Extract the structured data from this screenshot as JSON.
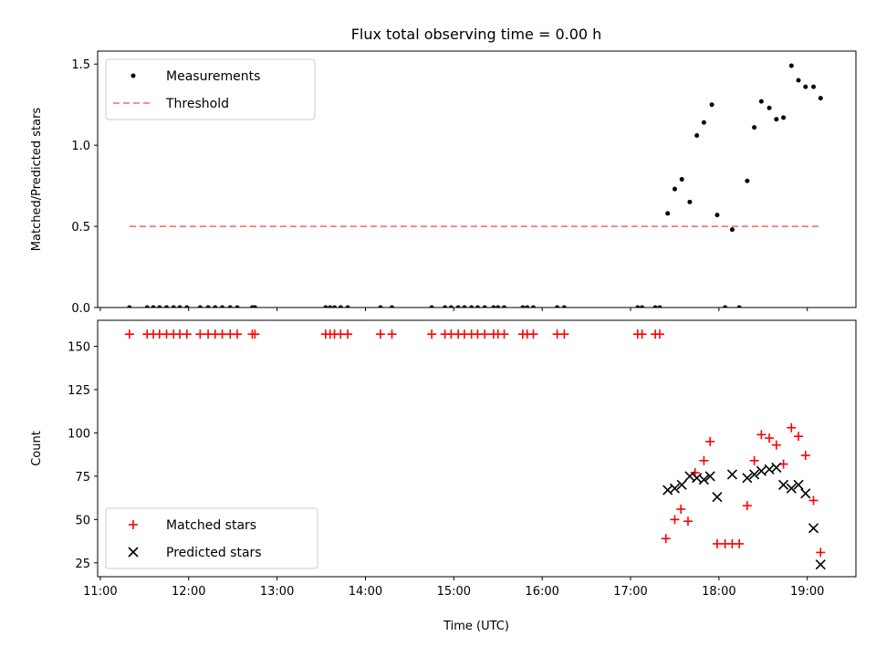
{
  "figure": {
    "title": "Flux total observing time = 0.00 h",
    "xlabel": "Time (UTC)",
    "xticks": [
      "11:00",
      "12:00",
      "13:00",
      "14:00",
      "15:00",
      "16:00",
      "17:00",
      "18:00",
      "19:00"
    ]
  },
  "chart_data": [
    {
      "type": "scatter",
      "title": "Flux total observing time = 0.00 h",
      "xlabel": "",
      "ylabel": "Matched/Predicted stars",
      "x_unit": "hours UTC",
      "xlim": [
        10.97,
        19.55
      ],
      "ylim": [
        0,
        1.58
      ],
      "yticks": [
        0.0,
        0.5,
        1.0,
        1.5
      ],
      "ytick_labels": [
        "0.0",
        "0.5",
        "1.0",
        "1.5"
      ],
      "legend": "top-left",
      "series": [
        {
          "name": "Measurements",
          "kind": "scatter",
          "marker": "dot",
          "color": "#000000",
          "points": [
            [
              11.33,
              0
            ],
            [
              11.53,
              0
            ],
            [
              11.6,
              0
            ],
            [
              11.67,
              0
            ],
            [
              11.75,
              0
            ],
            [
              11.83,
              0
            ],
            [
              11.9,
              0
            ],
            [
              11.98,
              0
            ],
            [
              12.13,
              0
            ],
            [
              12.22,
              0
            ],
            [
              12.3,
              0
            ],
            [
              12.38,
              0
            ],
            [
              12.47,
              0
            ],
            [
              12.55,
              0
            ],
            [
              12.72,
              0
            ],
            [
              12.75,
              0
            ],
            [
              13.55,
              0
            ],
            [
              13.6,
              0
            ],
            [
              13.65,
              0
            ],
            [
              13.72,
              0
            ],
            [
              13.8,
              0
            ],
            [
              14.17,
              0
            ],
            [
              14.3,
              0
            ],
            [
              14.75,
              0
            ],
            [
              14.9,
              0
            ],
            [
              14.97,
              0
            ],
            [
              15.05,
              0
            ],
            [
              15.12,
              0
            ],
            [
              15.2,
              0
            ],
            [
              15.27,
              0
            ],
            [
              15.35,
              0
            ],
            [
              15.45,
              0
            ],
            [
              15.5,
              0
            ],
            [
              15.57,
              0
            ],
            [
              15.78,
              0
            ],
            [
              15.83,
              0
            ],
            [
              15.9,
              0
            ],
            [
              16.17,
              0
            ],
            [
              16.25,
              0
            ],
            [
              17.08,
              0
            ],
            [
              17.13,
              0
            ],
            [
              17.28,
              0
            ],
            [
              17.33,
              0
            ],
            [
              17.42,
              0.58
            ],
            [
              17.5,
              0.73
            ],
            [
              17.58,
              0.79
            ],
            [
              17.67,
              0.65
            ],
            [
              17.75,
              1.06
            ],
            [
              17.83,
              1.14
            ],
            [
              17.92,
              1.25
            ],
            [
              17.98,
              0.57
            ],
            [
              18.07,
              0
            ],
            [
              18.15,
              0.48
            ],
            [
              18.23,
              0
            ],
            [
              18.32,
              0.78
            ],
            [
              18.4,
              1.11
            ],
            [
              18.48,
              1.27
            ],
            [
              18.57,
              1.23
            ],
            [
              18.65,
              1.16
            ],
            [
              18.73,
              1.17
            ],
            [
              18.82,
              1.49
            ],
            [
              18.9,
              1.4
            ],
            [
              18.98,
              1.36
            ],
            [
              19.07,
              1.36
            ],
            [
              19.15,
              1.29
            ]
          ]
        },
        {
          "name": "Threshold",
          "kind": "line",
          "style": "dashed",
          "color": "#ff7f7f",
          "points": [
            [
              11.33,
              0.5
            ],
            [
              19.15,
              0.5
            ]
          ]
        }
      ]
    },
    {
      "type": "scatter",
      "xlabel": "Time (UTC)",
      "ylabel": "Count",
      "x_unit": "hours UTC",
      "xlim": [
        10.97,
        19.55
      ],
      "ylim": [
        17,
        165
      ],
      "yticks": [
        25,
        50,
        75,
        100,
        125,
        150
      ],
      "ytick_labels": [
        "25",
        "50",
        "75",
        "100",
        "125",
        "150"
      ],
      "legend": "bottom-left",
      "series": [
        {
          "name": "Matched stars",
          "kind": "scatter",
          "marker": "plus",
          "color": "#ff0000",
          "points": [
            [
              11.33,
              157
            ],
            [
              11.53,
              157
            ],
            [
              11.6,
              157
            ],
            [
              11.67,
              157
            ],
            [
              11.75,
              157
            ],
            [
              11.83,
              157
            ],
            [
              11.9,
              157
            ],
            [
              11.98,
              157
            ],
            [
              12.13,
              157
            ],
            [
              12.22,
              157
            ],
            [
              12.3,
              157
            ],
            [
              12.38,
              157
            ],
            [
              12.47,
              157
            ],
            [
              12.55,
              157
            ],
            [
              12.72,
              157
            ],
            [
              12.75,
              157
            ],
            [
              13.55,
              157
            ],
            [
              13.6,
              157
            ],
            [
              13.65,
              157
            ],
            [
              13.72,
              157
            ],
            [
              13.8,
              157
            ],
            [
              14.17,
              157
            ],
            [
              14.3,
              157
            ],
            [
              14.75,
              157
            ],
            [
              14.9,
              157
            ],
            [
              14.97,
              157
            ],
            [
              15.05,
              157
            ],
            [
              15.12,
              157
            ],
            [
              15.2,
              157
            ],
            [
              15.27,
              157
            ],
            [
              15.35,
              157
            ],
            [
              15.45,
              157
            ],
            [
              15.5,
              157
            ],
            [
              15.57,
              157
            ],
            [
              15.78,
              157
            ],
            [
              15.83,
              157
            ],
            [
              15.9,
              157
            ],
            [
              16.17,
              157
            ],
            [
              16.25,
              157
            ],
            [
              17.08,
              157
            ],
            [
              17.13,
              157
            ],
            [
              17.28,
              157
            ],
            [
              17.33,
              157
            ],
            [
              17.4,
              39
            ],
            [
              17.5,
              50
            ],
            [
              17.57,
              56
            ],
            [
              17.65,
              49
            ],
            [
              17.73,
              77
            ],
            [
              17.83,
              84
            ],
            [
              17.9,
              95
            ],
            [
              17.98,
              36
            ],
            [
              18.07,
              36
            ],
            [
              18.15,
              36
            ],
            [
              18.23,
              36
            ],
            [
              18.32,
              58
            ],
            [
              18.4,
              84
            ],
            [
              18.48,
              99
            ],
            [
              18.57,
              97
            ],
            [
              18.65,
              93
            ],
            [
              18.73,
              82
            ],
            [
              18.82,
              103
            ],
            [
              18.9,
              98
            ],
            [
              18.98,
              87
            ],
            [
              19.07,
              61
            ],
            [
              19.15,
              31
            ]
          ]
        },
        {
          "name": "Predicted stars",
          "kind": "scatter",
          "marker": "x",
          "color": "#000000",
          "points": [
            [
              17.42,
              67
            ],
            [
              17.5,
              68
            ],
            [
              17.58,
              70
            ],
            [
              17.67,
              75
            ],
            [
              17.75,
              74
            ],
            [
              17.83,
              73
            ],
            [
              17.9,
              75
            ],
            [
              17.98,
              63
            ],
            [
              18.15,
              76
            ],
            [
              18.32,
              74
            ],
            [
              18.4,
              76
            ],
            [
              18.48,
              78
            ],
            [
              18.57,
              79
            ],
            [
              18.65,
              80
            ],
            [
              18.73,
              70
            ],
            [
              18.82,
              68
            ],
            [
              18.9,
              70
            ],
            [
              18.98,
              65
            ],
            [
              19.07,
              45
            ],
            [
              19.15,
              24
            ]
          ]
        }
      ]
    }
  ]
}
